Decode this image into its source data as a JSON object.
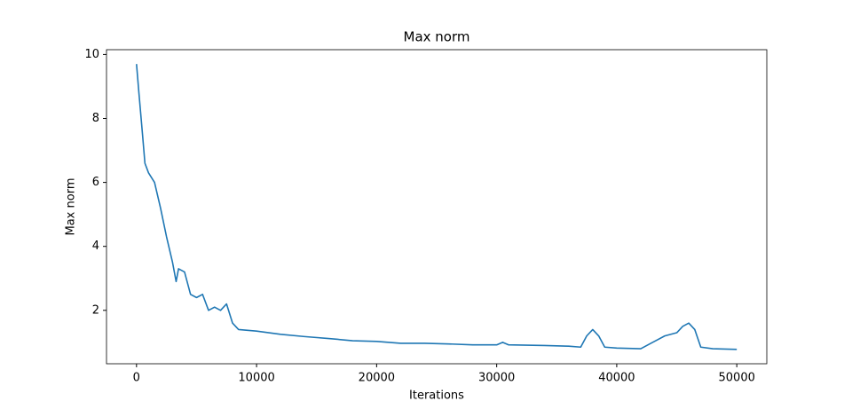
{
  "chart_data": {
    "type": "line",
    "title": "Max norm",
    "x_label": "Iterations",
    "y_label": "Max norm",
    "x": [
      0,
      200,
      500,
      700,
      1000,
      1500,
      2000,
      2500,
      3000,
      3300,
      3500,
      4000,
      4500,
      5000,
      5500,
      6000,
      6500,
      7000,
      7500,
      8000,
      8500,
      10000,
      12000,
      14000,
      16000,
      18000,
      20000,
      22000,
      24000,
      26000,
      28000,
      30000,
      30500,
      31000,
      34000,
      36000,
      37000,
      37500,
      38000,
      38500,
      39000,
      40000,
      42000,
      43000,
      44000,
      45000,
      45500,
      46000,
      46500,
      47000,
      48000,
      50000
    ],
    "series": [
      {
        "name": "Max norm",
        "color": "#1f77b4",
        "values": [
          9.7,
          8.8,
          7.5,
          6.6,
          6.3,
          6.0,
          5.2,
          4.3,
          3.5,
          2.9,
          3.3,
          3.2,
          2.5,
          2.4,
          2.5,
          2.0,
          2.1,
          2.0,
          2.2,
          1.6,
          1.4,
          1.35,
          1.25,
          1.18,
          1.12,
          1.05,
          1.03,
          0.97,
          0.97,
          0.95,
          0.92,
          0.92,
          1.0,
          0.92,
          0.9,
          0.88,
          0.85,
          1.2,
          1.4,
          1.2,
          0.85,
          0.82,
          0.8,
          1.0,
          1.2,
          1.3,
          1.5,
          1.6,
          1.4,
          0.85,
          0.8,
          0.78
        ]
      }
    ],
    "xlim": [
      -2500,
      52500
    ],
    "xticks": [
      0,
      10000,
      20000,
      30000,
      40000,
      50000
    ],
    "ylim": [
      0.33,
      10.15
    ],
    "yticks": [
      2,
      4,
      6,
      8,
      10
    ],
    "grid": false
  }
}
